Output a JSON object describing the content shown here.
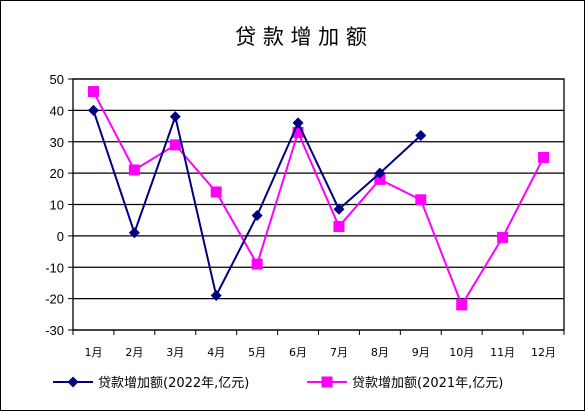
{
  "chart_data": {
    "type": "line",
    "title": "贷 款 增 加 额",
    "xlabel": "",
    "ylabel": "",
    "categories": [
      "1月",
      "2月",
      "3月",
      "4月",
      "5月",
      "6月",
      "7月",
      "8月",
      "9月",
      "10月",
      "11月",
      "12月"
    ],
    "ylim": [
      -30,
      50
    ],
    "yticks": [
      50,
      40,
      30,
      20,
      10,
      0,
      -10,
      -20,
      -30
    ],
    "grid": true,
    "legend_position": "bottom",
    "series": [
      {
        "name": "贷款增加额(2022年,亿元)",
        "color": "#000080",
        "marker": "diamond",
        "values": [
          40,
          1,
          38,
          -19,
          6.5,
          36,
          8.5,
          20,
          32,
          null,
          null,
          null
        ]
      },
      {
        "name": "贷款增加额(2021年,亿元)",
        "color": "#ff00ff",
        "marker": "square",
        "values": [
          46,
          21,
          29,
          14,
          -9,
          33,
          3,
          18,
          11.5,
          -22,
          -0.5,
          25
        ]
      }
    ]
  }
}
